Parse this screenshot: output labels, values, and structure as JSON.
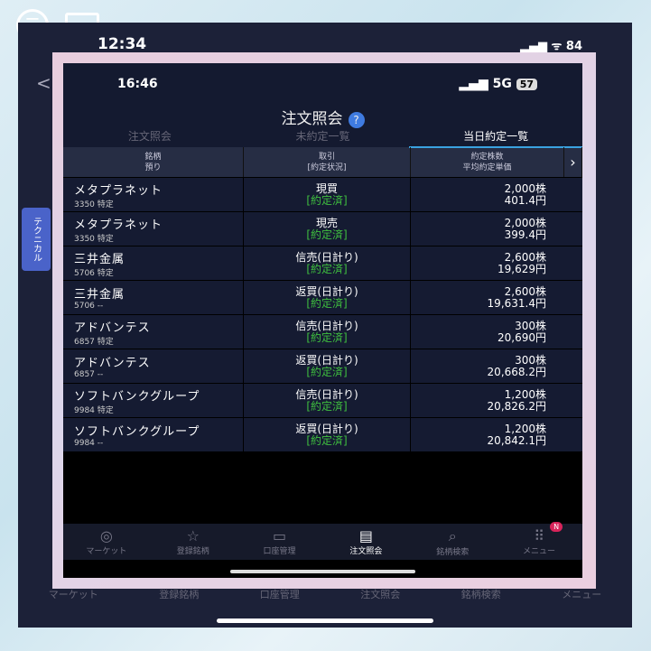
{
  "outer": {
    "time": "12:34",
    "status": "▂▄▆ ᯤ 84",
    "back": "<",
    "side_tab": "テクニカル",
    "tabs": [
      "マーケット",
      "登録銘柄",
      "口座管理",
      "注文照会",
      "銘柄検索",
      "メニュー"
    ]
  },
  "status": {
    "time": "16:46",
    "signal": "▂▄▆ 5G",
    "battery": "57"
  },
  "header": {
    "title": "注文照会",
    "help": "?"
  },
  "tabs": [
    "注文照会",
    "未約定一覧",
    "当日約定一覧"
  ],
  "columns": {
    "c1a": "銘柄",
    "c1b": "預り",
    "c2a": "取引",
    "c2b": "[約定状況]",
    "c3a": "約定株数",
    "c3b": "平均約定単価",
    "more": "›"
  },
  "rows": [
    {
      "name": "メタプラネット",
      "code": "3350 特定",
      "trade": "現買",
      "status": "[約定済]",
      "qty": "2,000株",
      "price": "401.4円"
    },
    {
      "name": "メタプラネット",
      "code": "3350 特定",
      "trade": "現売",
      "status": "[約定済]",
      "qty": "2,000株",
      "price": "399.4円"
    },
    {
      "name": "三井金属",
      "code": "5706 特定",
      "trade": "信売(日計り)",
      "status": "[約定済]",
      "qty": "2,600株",
      "price": "19,629円"
    },
    {
      "name": "三井金属",
      "code": "5706 --",
      "trade": "返買(日計り)",
      "status": "[約定済]",
      "qty": "2,600株",
      "price": "19,631.4円"
    },
    {
      "name": "アドバンテス",
      "code": "6857 特定",
      "trade": "信売(日計り)",
      "status": "[約定済]",
      "qty": "300株",
      "price": "20,690円"
    },
    {
      "name": "アドバンテス",
      "code": "6857 --",
      "trade": "返買(日計り)",
      "status": "[約定済]",
      "qty": "300株",
      "price": "20,668.2円"
    },
    {
      "name": "ソフトバンクグループ",
      "code": "9984 特定",
      "trade": "信売(日計り)",
      "status": "[約定済]",
      "qty": "1,200株",
      "price": "20,826.2円"
    },
    {
      "name": "ソフトバンクグループ",
      "code": "9984 --",
      "trade": "返買(日計り)",
      "status": "[約定済]",
      "qty": "1,200株",
      "price": "20,842.1円"
    }
  ],
  "nav": [
    {
      "label": "マーケット",
      "icon": "◎"
    },
    {
      "label": "登録銘柄",
      "icon": "☆"
    },
    {
      "label": "口座管理",
      "icon": "▭"
    },
    {
      "label": "注文照会",
      "icon": "▤"
    },
    {
      "label": "銘柄検索",
      "icon": "⌕"
    },
    {
      "label": "メニュー",
      "icon": "⠿",
      "badge": "N"
    }
  ]
}
